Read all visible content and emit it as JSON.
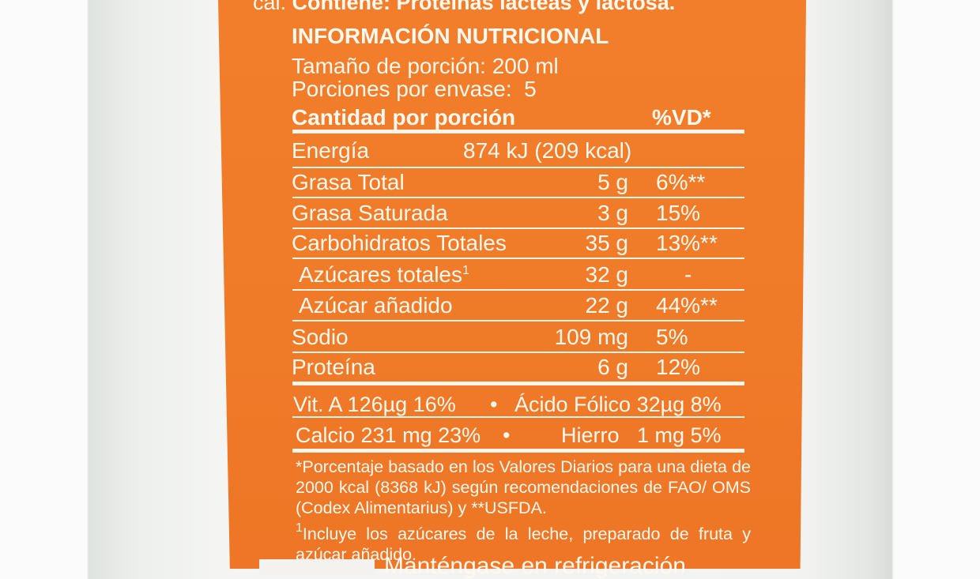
{
  "label": {
    "allergen_line_prefix": "cal.",
    "allergen_line": "Contiene: Proteínas lácteas y lactosa.",
    "title": "INFORMACIÓN NUTRICIONAL",
    "serving_size": "Tamaño de porción: 200 ml",
    "servings_per_container": "Porciones por envase:  5",
    "header_amount": "Cantidad por porción",
    "header_dv": "%VD*",
    "energy": {
      "name": "Energía",
      "value": "874 kJ (209 kcal)"
    },
    "rows": [
      {
        "name": "Grasa Total",
        "amount": "5 g",
        "dv": "6%**"
      },
      {
        "name": "Grasa Saturada",
        "amount": "3 g",
        "dv": "15%"
      },
      {
        "name": "Carbohidratos Totales",
        "amount": "35 g",
        "dv": "13%**"
      },
      {
        "name": "Azúcares totales",
        "sup": "1",
        "amount": "32 g",
        "dv": "-"
      },
      {
        "name": "Azúcar añadido",
        "amount": "22 g",
        "dv": "44%**"
      },
      {
        "name": "Sodio",
        "amount": "109 mg",
        "dv": "5%"
      },
      {
        "name": "Proteína",
        "amount": "6 g",
        "dv": "12%"
      }
    ],
    "vitamins_line1": {
      "left": "Vit. A 126µg 16%",
      "bullet": "•",
      "right": "Ácido Fólico 32µg 8%"
    },
    "vitamins_line2": {
      "left": "Calcio 231 mg 23%",
      "bullet": "•",
      "right": "Hierro   1 mg 5%"
    },
    "footnote1": "*Porcentaje basado en los Valores Diarios para una dieta de 2000 kcal (8368 kJ) según recomendaciones de FAO/ OMS (Codex Alimentarius) y **USFDA.",
    "footnote2_sup": "1",
    "footnote2": "Incluye los azúcares de la leche, preparado de fruta y azúcar añadido.",
    "bottom_text": "Manténgase en refrigeración"
  },
  "colors": {
    "panel": "#f07a2a",
    "text": "#fff8ee"
  }
}
